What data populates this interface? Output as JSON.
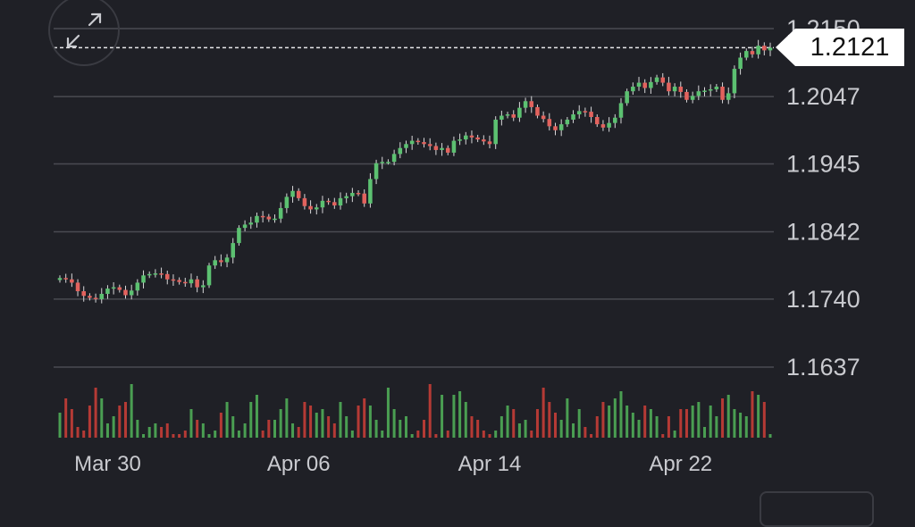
{
  "price_tag": {
    "value": "1.2121"
  },
  "icons": {
    "expand": "expand-icon"
  },
  "colors": {
    "up": "#5cc171",
    "down": "#e2625d",
    "vol_up": "#4a9e52",
    "vol_down": "#b53a35",
    "grid": "#4a4b52",
    "background": "#1f2026"
  },
  "chart_data": {
    "type": "candlestick",
    "y_ticks": [
      "1.2150",
      "1.2047",
      "1.1945",
      "1.1842",
      "1.1740",
      "1.1637"
    ],
    "y_tick_values": [
      1.215,
      1.2047,
      1.1945,
      1.1842,
      1.174,
      1.1637
    ],
    "ylim": [
      1.1637,
      1.215
    ],
    "x_ticks": [
      "Mar 30",
      "Apr 06",
      "Apr 14",
      "Apr 22"
    ],
    "x_tick_bar_index": [
      8,
      40,
      72,
      104
    ],
    "last_price": 1.2121,
    "grid": true,
    "closes": [
      1.1772,
      1.177,
      1.1765,
      1.1752,
      1.1745,
      1.1742,
      1.174,
      1.1748,
      1.1756,
      1.1758,
      1.1754,
      1.1746,
      1.1753,
      1.1765,
      1.1776,
      1.1778,
      1.1779,
      1.1778,
      1.177,
      1.1769,
      1.1766,
      1.1764,
      1.177,
      1.1758,
      1.1761,
      1.1791,
      1.1799,
      1.1796,
      1.1803,
      1.1825,
      1.1848,
      1.1853,
      1.1856,
      1.1866,
      1.1865,
      1.1861,
      1.1862,
      1.1878,
      1.1895,
      1.1904,
      1.1893,
      1.1881,
      1.1876,
      1.1879,
      1.1889,
      1.1887,
      1.1882,
      1.1893,
      1.1896,
      1.1901,
      1.19,
      1.1885,
      1.1922,
      1.1946,
      1.1948,
      1.1948,
      1.196,
      1.1969,
      1.1975,
      1.198,
      1.1978,
      1.1975,
      1.1972,
      1.1966,
      1.1969,
      1.1962,
      1.198,
      1.1982,
      1.1988,
      1.1985,
      1.1982,
      1.1979,
      1.1975,
      1.2012,
      1.2018,
      1.202,
      1.2015,
      1.203,
      1.204,
      1.2031,
      1.2018,
      1.2013,
      1.2002,
      1.1996,
      1.2005,
      1.2012,
      1.202,
      1.2025,
      1.2024,
      1.2016,
      1.2005,
      1.2,
      1.2007,
      1.2015,
      1.2037,
      1.2055,
      1.2062,
      1.2068,
      1.206,
      1.2069,
      1.2076,
      1.2068,
      1.2055,
      1.2062,
      1.2054,
      1.2042,
      1.2048,
      1.2055,
      1.2056,
      1.2058,
      1.2062,
      1.2042,
      1.2052,
      1.2089,
      1.2106,
      1.2116,
      1.2111,
      1.2124,
      1.2117,
      1.2121
    ],
    "volumes": [
      0.35,
      0.55,
      0.4,
      0.15,
      0.1,
      0.45,
      0.7,
      0.55,
      0.2,
      0.3,
      0.45,
      0.5,
      0.75,
      0.25,
      0.05,
      0.15,
      0.2,
      0.15,
      0.2,
      0.05,
      0.05,
      0.1,
      0.4,
      0.25,
      0.2,
      0.05,
      0.1,
      0.35,
      0.5,
      0.3,
      0.1,
      0.2,
      0.5,
      0.6,
      0.1,
      0.25,
      0.25,
      0.4,
      0.55,
      0.2,
      0.15,
      0.5,
      0.45,
      0.35,
      0.4,
      0.3,
      0.2,
      0.5,
      0.3,
      0.1,
      0.45,
      0.55,
      0.45,
      0.25,
      0.1,
      0.7,
      0.4,
      0.25,
      0.3,
      0.05,
      0.1,
      0.25,
      0.75,
      0.05,
      0.6,
      0.1,
      0.6,
      0.65,
      0.5,
      0.3,
      0.25,
      0.1,
      0.05,
      0.1,
      0.3,
      0.45,
      0.4,
      0.2,
      0.25,
      0.1,
      0.4,
      0.7,
      0.5,
      0.35,
      0.25,
      0.55,
      0.2,
      0.4,
      0.15,
      0.05,
      0.3,
      0.5,
      0.45,
      0.55,
      0.65,
      0.45,
      0.35,
      0.25,
      0.45,
      0.4,
      0.3,
      0.05,
      0.3,
      0.1,
      0.4,
      0.4,
      0.45,
      0.5,
      0.15,
      0.45,
      0.3,
      0.55,
      0.6,
      0.4,
      0.35,
      0.3,
      0.65,
      0.6,
      0.5,
      0.05
    ]
  }
}
